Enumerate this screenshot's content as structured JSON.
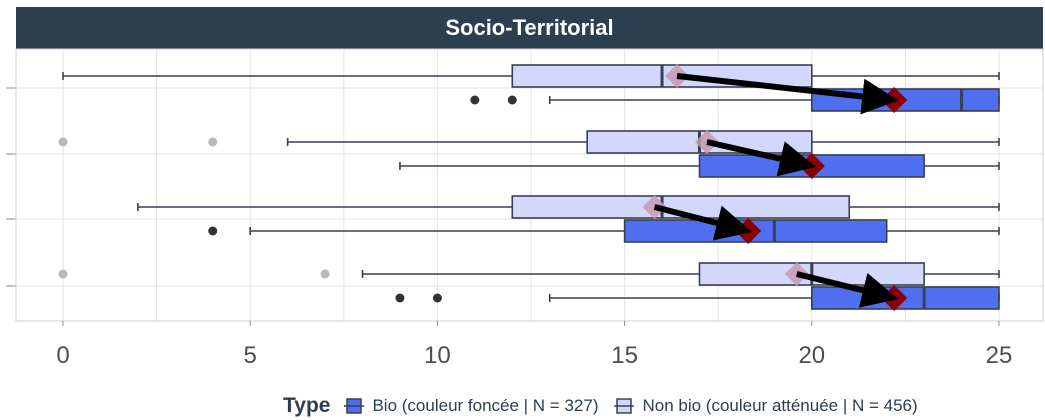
{
  "chart_data": {
    "type": "box",
    "title": "Socio-Territorial",
    "orientation": "horizontal",
    "xlim": [
      0,
      25
    ],
    "x_ticks": [
      0,
      5,
      10,
      15,
      20,
      25
    ],
    "x_tick_labels": [
      "0",
      "5",
      "10",
      "15",
      "20",
      "25"
    ],
    "xlabel": "",
    "ylabel": "",
    "grid": true,
    "legend": {
      "title": "Type",
      "position": "bottom",
      "entries": [
        "Bio (couleur foncée | N = 327)",
        "Non bio (couleur atténuée | N = 456)"
      ]
    },
    "groups": [
      {
        "non_bio": {
          "whisker_low": 0,
          "q1": 12,
          "median": 16,
          "q3": 20,
          "whisker_high": 25,
          "mean": 16.4,
          "outliers": []
        },
        "bio": {
          "whisker_low": 13,
          "q1": 20,
          "median": 24,
          "q3": 25,
          "whisker_high": 25,
          "mean": 22.2,
          "outliers": [
            11,
            12
          ]
        }
      },
      {
        "non_bio": {
          "whisker_low": 6,
          "q1": 14,
          "median": 17,
          "q3": 20,
          "whisker_high": 25,
          "mean": 17.2,
          "outliers": [
            0,
            4
          ]
        },
        "bio": {
          "whisker_low": 9,
          "q1": 17,
          "median": 20,
          "q3": 23,
          "whisker_high": 25,
          "mean": 20.0,
          "outliers": []
        }
      },
      {
        "non_bio": {
          "whisker_low": 2,
          "q1": 12,
          "median": 16,
          "q3": 21,
          "whisker_high": 25,
          "mean": 15.8,
          "outliers": []
        },
        "bio": {
          "whisker_low": 5,
          "q1": 15,
          "median": 19,
          "q3": 22,
          "whisker_high": 25,
          "mean": 18.3,
          "outliers": [
            4
          ]
        }
      },
      {
        "non_bio": {
          "whisker_low": 8,
          "q1": 17,
          "median": 20,
          "q3": 23,
          "whisker_high": 25,
          "mean": 19.6,
          "outliers": [
            0,
            7
          ]
        },
        "bio": {
          "whisker_low": 13,
          "q1": 20,
          "median": 23,
          "q3": 25,
          "whisker_high": 25,
          "mean": 22.2,
          "outliers": [
            9,
            10
          ]
        }
      }
    ],
    "colors": {
      "bio_fill": "#4f6ef0",
      "non_bio_fill": "#d2d7fb",
      "box_stroke": "#3a3f52",
      "bio_mean": "#8b0000",
      "non_bio_mean": "#c899b0",
      "arrow": "#000000",
      "bio_outlier": "#333333",
      "non_bio_outlier": "#b8b8b8",
      "grid": "#e3e3e3",
      "strip": "#2c3e50",
      "axis_text": "#4d4d4d"
    }
  }
}
